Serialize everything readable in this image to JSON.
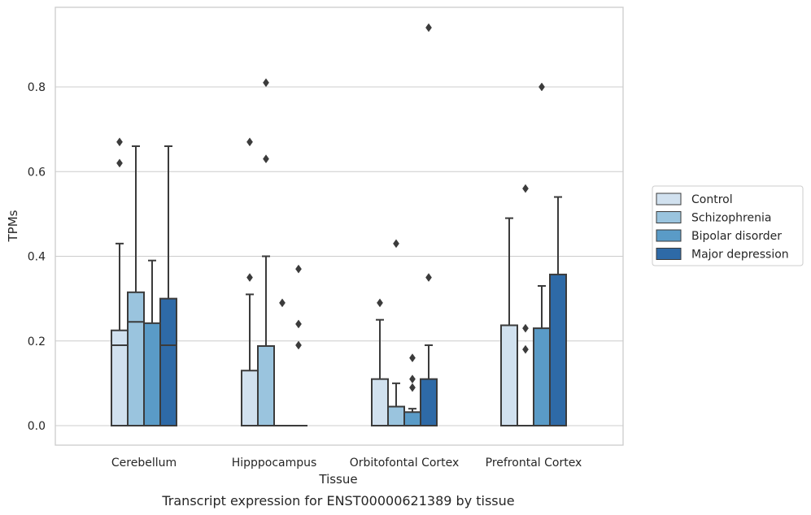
{
  "caption": "Transcript expression for ENST00000621389 by tissue",
  "chart_data": {
    "type": "box",
    "xlabel": "Tissue",
    "ylabel": "TPMs",
    "ylim": [
      -0.045,
      0.98
    ],
    "yticks": [
      0.0,
      0.2,
      0.4,
      0.6,
      0.8
    ],
    "ytick_labels": [
      "0.0",
      "0.2",
      "0.4",
      "0.6",
      "0.8"
    ],
    "grid": "horizontal",
    "legend_position": "right",
    "categories": [
      "Cerebellum",
      "Hipppocampus",
      "Orbitofontal Cortex",
      "Prefrontal Cortex"
    ],
    "series": [
      {
        "name": "Control",
        "color": "#d1e1ef",
        "boxes": [
          {
            "q1": 0.0,
            "median": 0.19,
            "q3": 0.225,
            "whislo": 0.0,
            "whishi": 0.43,
            "fliers": [
              0.62,
              0.67
            ]
          },
          {
            "q1": 0.0,
            "median": 0.0,
            "q3": 0.13,
            "whislo": 0.0,
            "whishi": 0.31,
            "fliers": [
              0.35,
              0.67
            ]
          },
          {
            "q1": 0.0,
            "median": 0.0,
            "q3": 0.11,
            "whislo": 0.0,
            "whishi": 0.25,
            "fliers": [
              0.29
            ]
          },
          {
            "q1": 0.0,
            "median": 0.0,
            "q3": 0.237,
            "whislo": 0.0,
            "whishi": 0.49,
            "fliers": []
          }
        ]
      },
      {
        "name": "Schizophrenia",
        "color": "#9ac4de",
        "boxes": [
          {
            "q1": 0.0,
            "median": 0.245,
            "q3": 0.315,
            "whislo": 0.0,
            "whishi": 0.66,
            "fliers": []
          },
          {
            "q1": 0.0,
            "median": 0.0,
            "q3": 0.188,
            "whislo": 0.0,
            "whishi": 0.4,
            "fliers": [
              0.63,
              0.81
            ]
          },
          {
            "q1": 0.0,
            "median": 0.0,
            "q3": 0.045,
            "whislo": 0.0,
            "whishi": 0.1,
            "fliers": [
              0.43
            ]
          },
          {
            "q1": 0.0,
            "median": 0.0,
            "q3": 0.0,
            "whislo": 0.0,
            "whishi": 0.0,
            "fliers": [
              0.18,
              0.23,
              0.56
            ]
          }
        ]
      },
      {
        "name": "Bipolar disorder",
        "color": "#5a9bc7",
        "boxes": [
          {
            "q1": 0.0,
            "median": 0.0,
            "q3": 0.242,
            "whislo": 0.0,
            "whishi": 0.39,
            "fliers": []
          },
          {
            "q1": 0.0,
            "median": 0.0,
            "q3": 0.0,
            "whislo": 0.0,
            "whishi": 0.0,
            "fliers": [
              0.29
            ]
          },
          {
            "q1": 0.0,
            "median": 0.0,
            "q3": 0.032,
            "whislo": 0.0,
            "whishi": 0.04,
            "fliers": [
              0.09,
              0.11,
              0.16
            ]
          },
          {
            "q1": 0.0,
            "median": 0.0,
            "q3": 0.23,
            "whislo": 0.0,
            "whishi": 0.33,
            "fliers": [
              0.8
            ]
          }
        ]
      },
      {
        "name": "Major depression",
        "color": "#2e6aa7",
        "boxes": [
          {
            "q1": 0.0,
            "median": 0.19,
            "q3": 0.3,
            "whislo": 0.0,
            "whishi": 0.66,
            "fliers": []
          },
          {
            "q1": 0.0,
            "median": 0.0,
            "q3": 0.0,
            "whislo": 0.0,
            "whishi": 0.0,
            "fliers": [
              0.19,
              0.24,
              0.37
            ]
          },
          {
            "q1": 0.0,
            "median": 0.0,
            "q3": 0.11,
            "whislo": 0.0,
            "whishi": 0.19,
            "fliers": [
              0.35,
              0.94
            ]
          },
          {
            "q1": 0.0,
            "median": 0.0,
            "q3": 0.357,
            "whislo": 0.0,
            "whishi": 0.54,
            "fliers": []
          }
        ]
      }
    ]
  }
}
